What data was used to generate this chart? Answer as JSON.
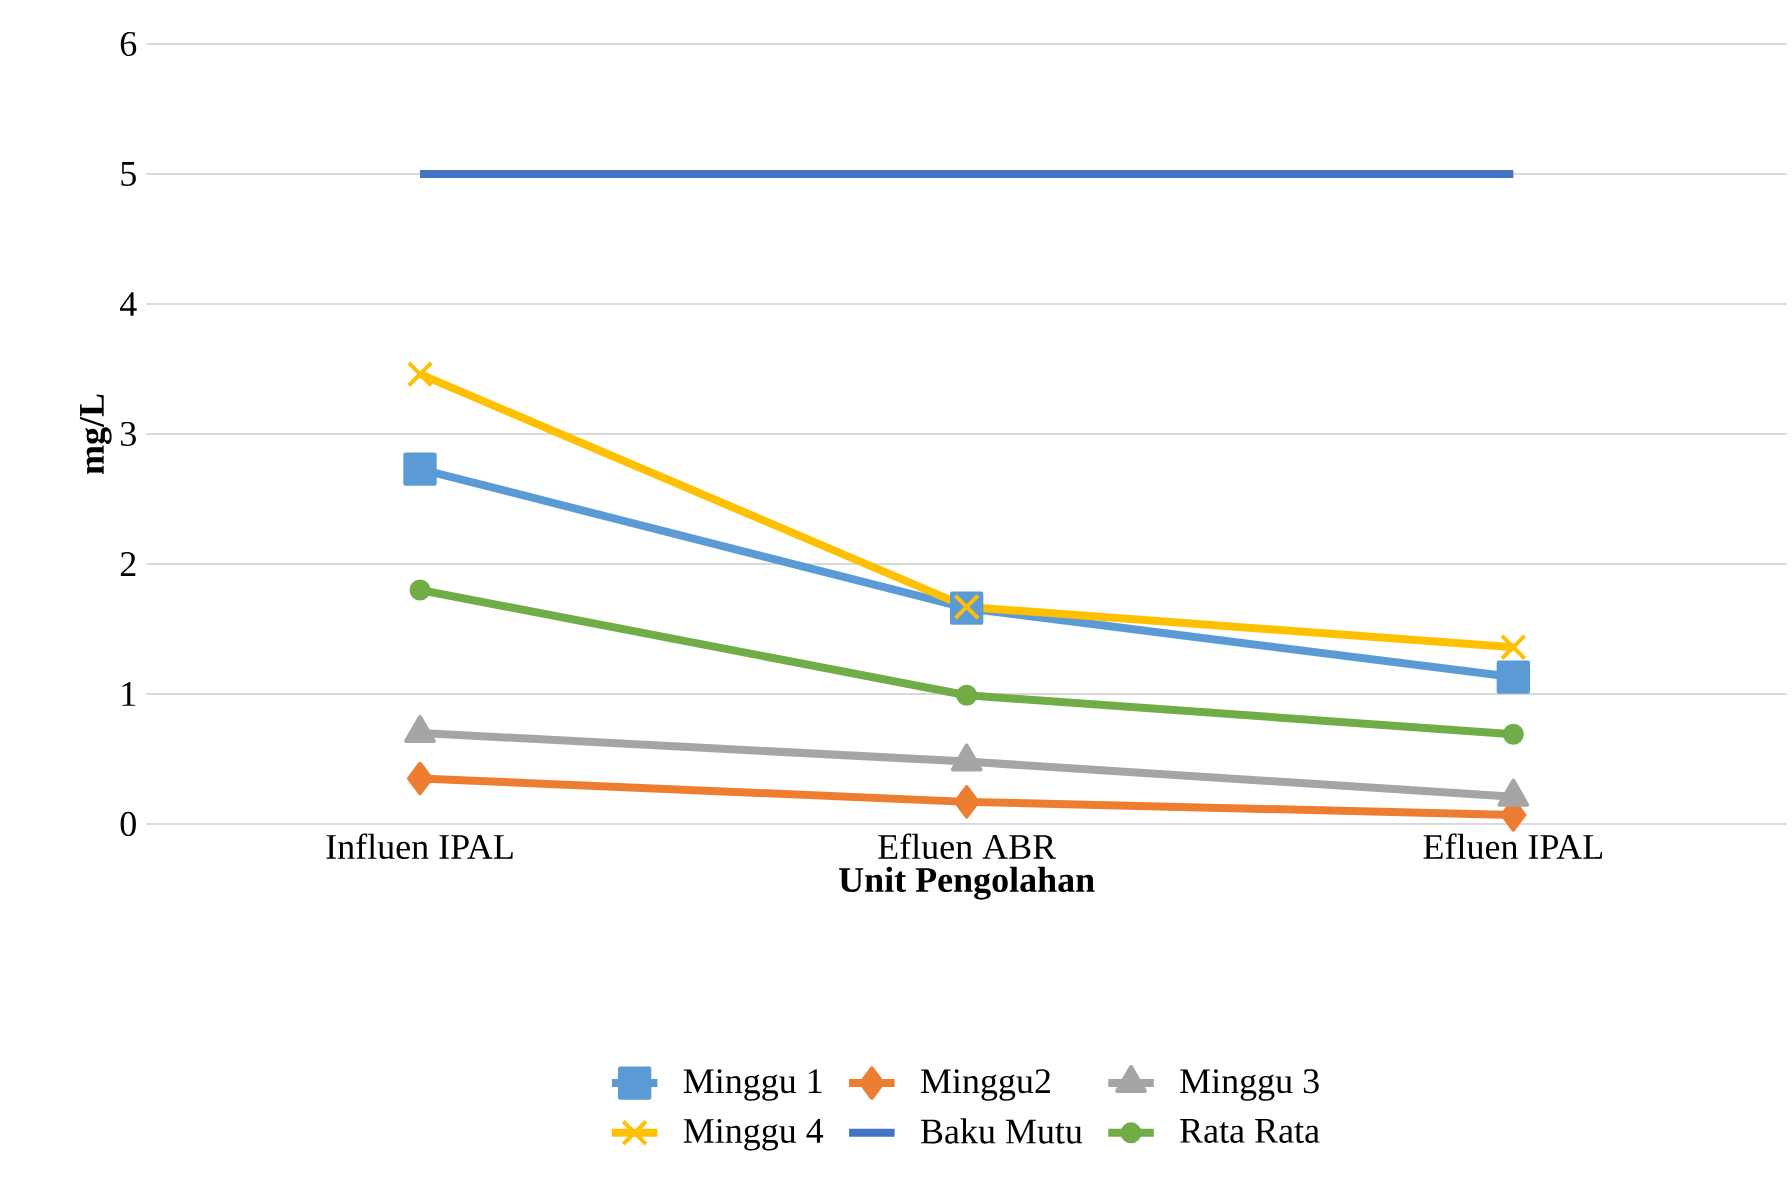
{
  "chart_data": {
    "type": "line",
    "xlabel": "Unit Pengolahan",
    "ylabel": "mg/L",
    "categories": [
      "Influen IPAL",
      "Efluen ABR",
      "Efluen IPAL"
    ],
    "ylim": [
      0,
      6
    ],
    "yticks": [
      0,
      1,
      2,
      3,
      4,
      5,
      6
    ],
    "grid": "y",
    "legend": "bottom",
    "series": [
      {
        "name": "Minggu 1",
        "color": "#5b9bd5",
        "marker": "square",
        "values": [
          2.73,
          1.66,
          1.13
        ]
      },
      {
        "name": "Minggu2",
        "color": "#ed7d31",
        "marker": "diamond",
        "values": [
          0.35,
          0.17,
          0.07
        ]
      },
      {
        "name": "Minggu 3",
        "color": "#a5a5a5",
        "marker": "triangle",
        "values": [
          0.7,
          0.48,
          0.21
        ]
      },
      {
        "name": "Minggu 4",
        "color": "#ffc000",
        "marker": "cross",
        "values": [
          3.46,
          1.67,
          1.36
        ]
      },
      {
        "name": "Baku Mutu",
        "color": "#4472c4",
        "marker": "none",
        "values": [
          5,
          5,
          5
        ]
      },
      {
        "name": "Rata Rata",
        "color": "#70ad47",
        "marker": "circle",
        "values": [
          1.8,
          0.99,
          0.69
        ]
      }
    ]
  }
}
